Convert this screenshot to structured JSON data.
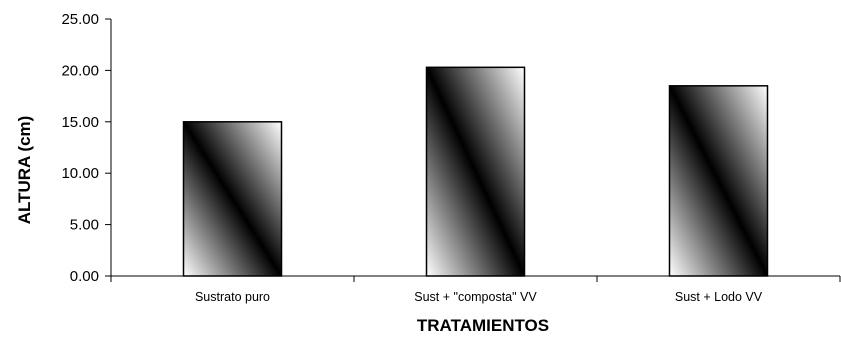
{
  "chart_data": {
    "type": "bar",
    "categories": [
      "Sustrato puro",
      "Sust + \"composta\" VV",
      "Sust + Lodo VV"
    ],
    "values": [
      15.0,
      20.3,
      18.5
    ],
    "xlabel": "TRATAMIENTOS",
    "ylabel": "ALTURA (cm)",
    "ylim": [
      0,
      25
    ],
    "yticks": [
      0,
      5,
      10,
      15,
      20,
      25
    ],
    "ytick_labels": [
      "0.00",
      "5.00",
      "10.00",
      "15.00",
      "20.00",
      "25.00"
    ],
    "grid": false,
    "legend": "none",
    "bar_fill": "diagonal gradient white-black-white",
    "colors": {
      "bar_light": "#ffffff",
      "bar_dark": "#000000",
      "axis": "#000000"
    }
  }
}
